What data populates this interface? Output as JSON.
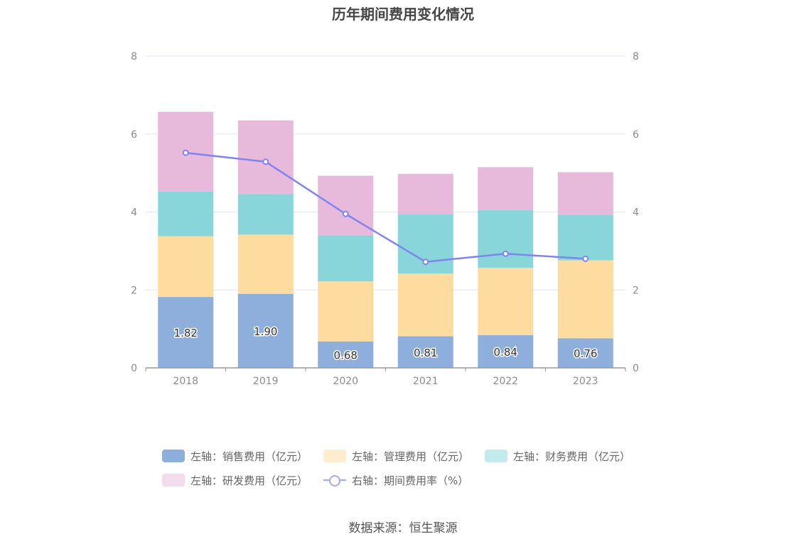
{
  "title": "历年期间费用变化情况",
  "source": "数据来源：恒生聚源",
  "chart_data": {
    "type": "bar",
    "stacked": true,
    "categories": [
      "2018",
      "2019",
      "2020",
      "2021",
      "2022",
      "2023"
    ],
    "left_axis": {
      "ylim": [
        0,
        8
      ],
      "ticks": [
        "0",
        "2",
        "4",
        "6",
        "8"
      ]
    },
    "right_axis": {
      "ylim": [
        0,
        8
      ],
      "ticks": [
        "0",
        "2",
        "4",
        "6",
        "8"
      ]
    },
    "grid": true,
    "legend_position": "bottom",
    "series": [
      {
        "name": "左轴：销售费用（亿元）",
        "type": "bar",
        "axis": "left",
        "color": "#8eaedb",
        "values": [
          1.82,
          1.9,
          0.68,
          0.81,
          0.84,
          0.76
        ],
        "labels": [
          "1.82",
          "1.90",
          "0.68",
          "0.81",
          "0.84",
          "0.76"
        ]
      },
      {
        "name": "左轴：管理费用（亿元）",
        "type": "bar",
        "axis": "left",
        "color": "#fedb9e",
        "values": [
          1.56,
          1.52,
          1.54,
          1.61,
          1.73,
          2.0
        ]
      },
      {
        "name": "左轴：财务费用（亿元）",
        "type": "bar",
        "axis": "left",
        "color": "#88d6da",
        "values": [
          1.14,
          1.05,
          1.18,
          1.53,
          1.48,
          1.17
        ]
      },
      {
        "name": "左轴：研发费用（亿元）",
        "type": "bar",
        "axis": "left",
        "color": "#e7b9db",
        "values": [
          2.05,
          1.88,
          1.53,
          1.03,
          1.1,
          1.09
        ]
      },
      {
        "name": "右轴：期间费用率（%）",
        "type": "line",
        "axis": "right",
        "color": "#8084f0",
        "values": [
          5.52,
          5.29,
          3.95,
          2.72,
          2.93,
          2.8
        ]
      }
    ]
  }
}
